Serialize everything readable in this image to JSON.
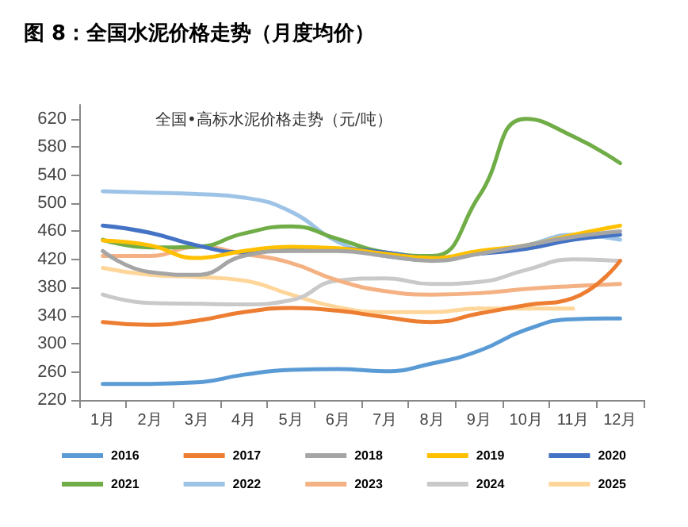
{
  "chart_data": {
    "type": "line",
    "title": "图 8：全国水泥价格走势（月度均价）",
    "subtitle": "全国•高标水泥价格走势（元/吨）",
    "categories": [
      "1月",
      "2月",
      "3月",
      "4月",
      "5月",
      "6月",
      "7月",
      "8月",
      "9月",
      "10月",
      "11月",
      "12月"
    ],
    "ylim": [
      220,
      640
    ],
    "yticks": [
      220,
      260,
      300,
      340,
      380,
      420,
      460,
      500,
      540,
      580,
      620
    ],
    "grid": false,
    "legend": "bottom",
    "marker": "none",
    "line_style": "solid",
    "series": [
      {
        "name": "2016",
        "color": "#5b9bd5",
        "values": [
          243,
          243,
          245,
          256,
          263,
          264,
          261,
          272,
          290,
          320,
          335,
          336
        ]
      },
      {
        "name": "2017",
        "color": "#ed7d31",
        "values": [
          331,
          327,
          333,
          345,
          351,
          347,
          338,
          331,
          343,
          355,
          365,
          418
        ]
      },
      {
        "name": "2018",
        "color": "#a5a5a5",
        "values": [
          432,
          402,
          398,
          425,
          432,
          432,
          425,
          418,
          428,
          440,
          452,
          460
        ]
      },
      {
        "name": "2019",
        "color": "#ffc000",
        "values": [
          447,
          440,
          422,
          432,
          438,
          436,
          428,
          422,
          432,
          440,
          455,
          468
        ]
      },
      {
        "name": "2020",
        "color": "#4472c4",
        "values": [
          468,
          458,
          440,
          430,
          435,
          435,
          430,
          422,
          428,
          435,
          448,
          455
        ]
      },
      {
        "name": "2021",
        "color": "#70ad47",
        "values": [
          448,
          437,
          438,
          457,
          467,
          449,
          430,
          425,
          510,
          620,
          595,
          557
        ]
      },
      {
        "name": "2022",
        "color": "#9dc3e6",
        "values": [
          517,
          515,
          513,
          508,
          488,
          445,
          425,
          420,
          430,
          440,
          455,
          448
        ]
      },
      {
        "name": "2023",
        "color": "#f4b183",
        "values": [
          425,
          425,
          438,
          428,
          415,
          390,
          375,
          370,
          372,
          378,
          382,
          385
        ]
      },
      {
        "name": "2024",
        "color": "#c9c9c9",
        "values": [
          370,
          358,
          357,
          356,
          362,
          390,
          393,
          385,
          388,
          405,
          420,
          418
        ]
      },
      {
        "name": "2025",
        "color": "#ffd699",
        "values": [
          408,
          398,
          395,
          390,
          370,
          352,
          345,
          345,
          350,
          350,
          350,
          null
        ]
      }
    ]
  }
}
